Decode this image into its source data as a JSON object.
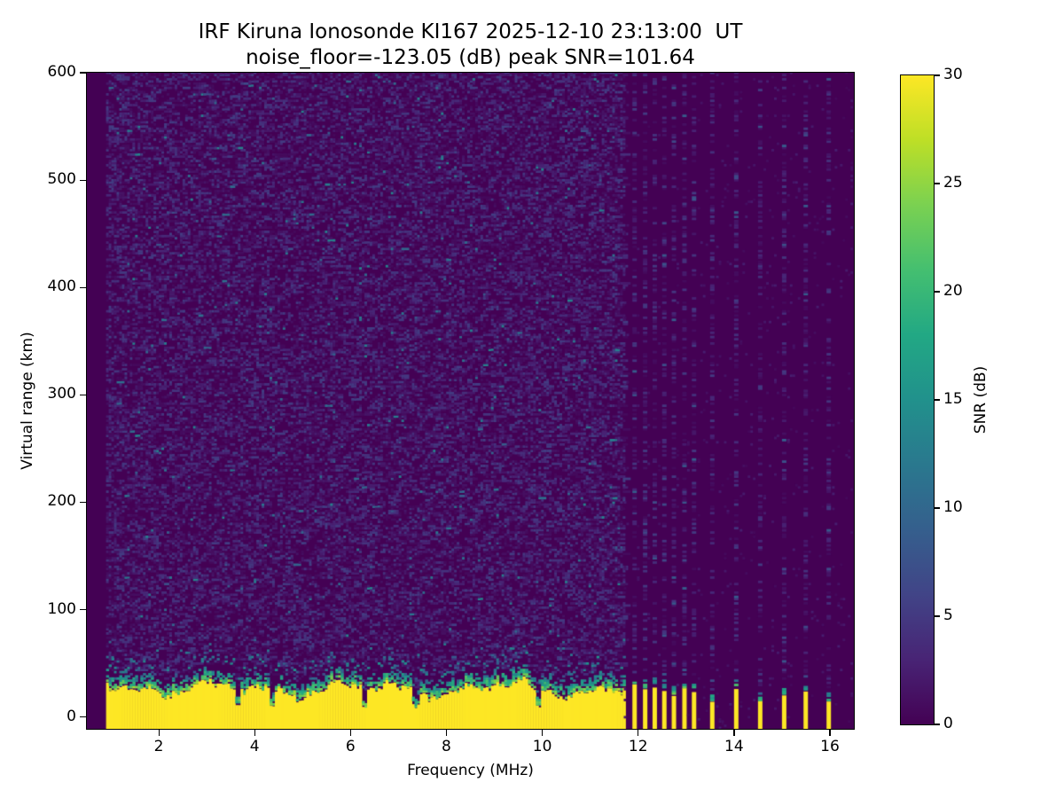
{
  "figure": {
    "background": "#ffffff"
  },
  "chart_data": {
    "type": "heatmap",
    "title": "IRF Kiruna Ionosonde KI167 2025-12-10 23:13:00  UT",
    "subtitle": "noise_floor=-123.05 (dB) peak SNR=101.64",
    "xlabel": "Frequency (MHz)",
    "ylabel": "Virtual range (km)",
    "xlim": [
      0.5,
      16.5
    ],
    "ylim": [
      -11,
      600
    ],
    "x_ticks": [
      2,
      4,
      6,
      8,
      10,
      12,
      14,
      16
    ],
    "y_ticks": [
      0,
      100,
      200,
      300,
      400,
      500,
      600
    ],
    "grid": false,
    "colorbar": {
      "label": "SNR (dB)",
      "ticks": [
        0,
        5,
        10,
        15,
        20,
        25,
        30
      ],
      "vmin": 0,
      "vmax": 30,
      "colormap": "viridis",
      "stops": [
        [
          0.0,
          "#440154"
        ],
        [
          0.1,
          "#482475"
        ],
        [
          0.2,
          "#414487"
        ],
        [
          0.3,
          "#355f8d"
        ],
        [
          0.4,
          "#2a788e"
        ],
        [
          0.5,
          "#21918c"
        ],
        [
          0.6,
          "#22a884"
        ],
        [
          0.7,
          "#44bf70"
        ],
        [
          0.8,
          "#7ad151"
        ],
        [
          0.9,
          "#bddf26"
        ],
        [
          1.0,
          "#fde725"
        ]
      ]
    },
    "model": {
      "seed": 20251210,
      "data_start_mhz": 0.9,
      "sweep_end_mhz": 11.7,
      "fine_step_mhz": 0.055,
      "row_step_km": 2,
      "dense_bars_mhz": [
        11.88,
        12.1,
        12.3,
        12.5,
        12.7,
        12.92,
        13.12
      ],
      "sparse_bars_mhz": [
        13.5,
        14.0,
        14.5,
        15.0,
        15.45,
        15.93
      ],
      "clutter_base_top_km": 26,
      "clutter_transition_km": 16,
      "notch_freqs_mhz": [
        3.62,
        4.32,
        6.28,
        7.33,
        9.87
      ],
      "background_fill_prob": 0.45,
      "stripe_fill_prob": 0.35,
      "gap_fill_prob": 0.03,
      "saturated_value_db": 30
    }
  }
}
